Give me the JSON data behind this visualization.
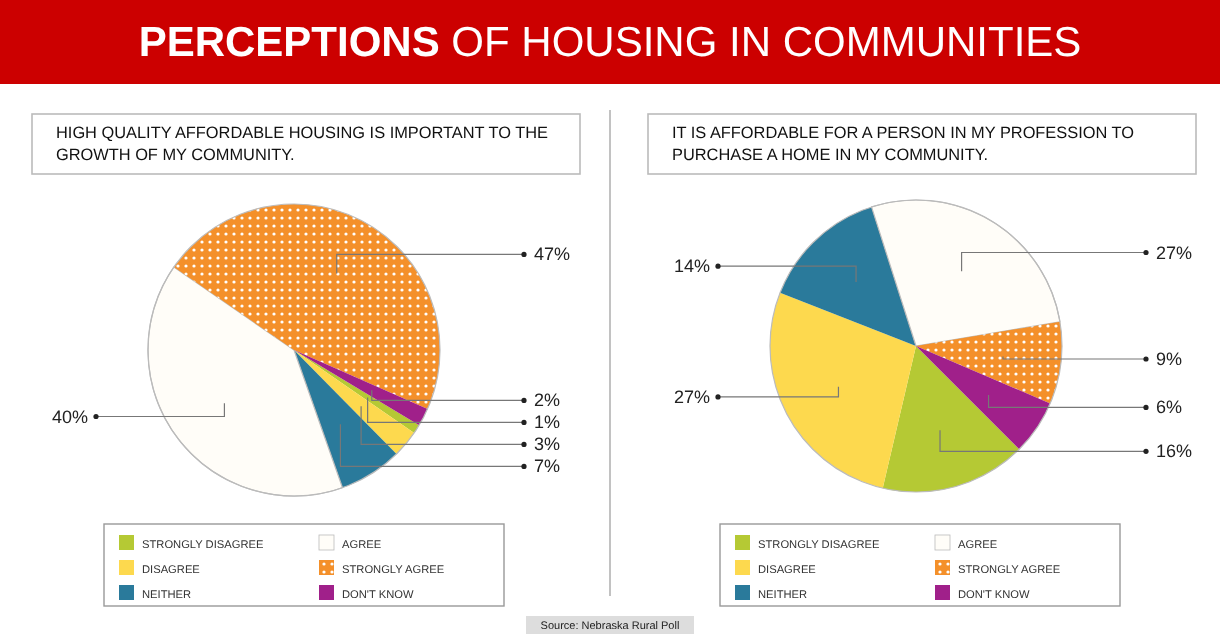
{
  "chart_data": [
    {
      "type": "pie",
      "title": "PERCEPTIONS OF HOUSING IN COMMUNITIES",
      "subtitle": "HIGH QUALITY AFFORDABLE HOUSING IS IMPORTANT TO THE GROWTH OF MY COMMUNITY.",
      "categories": [
        "STRONGLY DISAGREE",
        "DISAGREE",
        "NEITHER",
        "AGREE",
        "STRONGLY AGREE",
        "DON'T KNOW"
      ],
      "values": [
        1,
        3,
        7,
        40,
        47,
        2
      ],
      "value_labels": [
        "1%",
        "3%",
        "7%",
        "40%",
        "47%",
        "2%"
      ],
      "colors": [
        "#b5c934",
        "#fdd94e",
        "#2a7a9b",
        "#fffdf8",
        "#f4902a",
        "#a0208a"
      ],
      "legend": "bottom",
      "annotations": [
        "Source: Nebraska Rural Poll"
      ]
    },
    {
      "type": "pie",
      "subtitle": "IT IS AFFORDABLE FOR A PERSON IN MY PROFESSION TO PURCHASE A HOME IN MY COMMUNITY.",
      "categories": [
        "STRONGLY DISAGREE",
        "DISAGREE",
        "NEITHER",
        "AGREE",
        "STRONGLY AGREE",
        "DON'T KNOW"
      ],
      "values": [
        16,
        27,
        14,
        27,
        9,
        6
      ],
      "value_labels": [
        "16%",
        "27%",
        "14%",
        "27%",
        "9%",
        "6%"
      ],
      "colors": [
        "#b5c934",
        "#fdd94e",
        "#2a7a9b",
        "#fffdf8",
        "#f4902a",
        "#a0208a"
      ],
      "legend": "bottom"
    }
  ]
}
